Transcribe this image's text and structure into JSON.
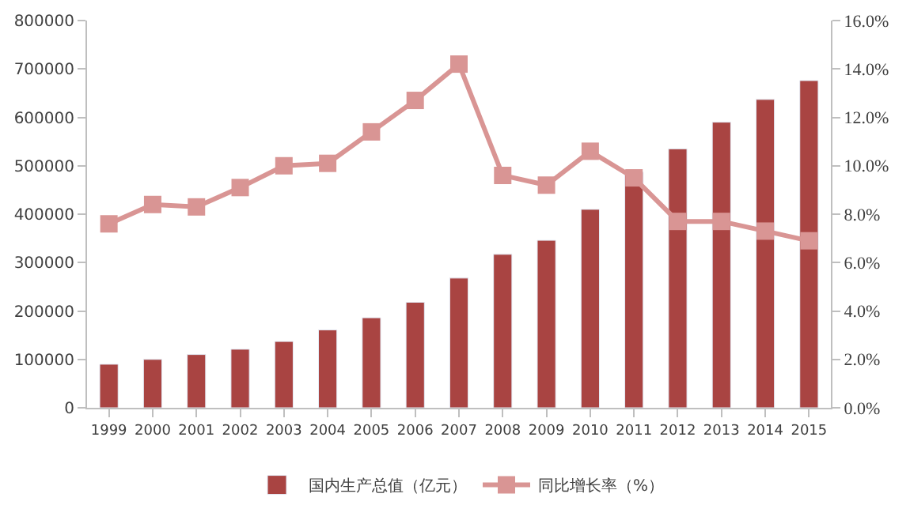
{
  "chart_data": {
    "type": "bar",
    "categories": [
      "1999",
      "2000",
      "2001",
      "2002",
      "2003",
      "2004",
      "2005",
      "2006",
      "2007",
      "2008",
      "2009",
      "2010",
      "2011",
      "2012",
      "2013",
      "2014",
      "2015"
    ],
    "series": [
      {
        "name": "国内生产总值（亿元）",
        "color": "#a94442",
        "values": [
          90000,
          100000,
          110000,
          121000,
          137000,
          161000,
          186000,
          218000,
          268000,
          317000,
          346000,
          410000,
          487000,
          535000,
          590000,
          637000,
          676000
        ]
      },
      {
        "name": "同比增长率（%）",
        "type": "line",
        "axis": "y2",
        "color": "#d99594",
        "marker": "square",
        "values": [
          7.6,
          8.4,
          8.3,
          9.1,
          10.0,
          10.1,
          11.4,
          12.7,
          14.2,
          9.6,
          9.2,
          10.6,
          9.5,
          7.7,
          7.7,
          7.3,
          6.9
        ]
      }
    ],
    "ylim": [
      0,
      800000
    ],
    "yticks": [
      0,
      100000,
      200000,
      300000,
      400000,
      500000,
      600000,
      700000,
      800000
    ],
    "y2lim": [
      0,
      16
    ],
    "y2ticks": [
      {
        "value": 0,
        "label": "0.0%"
      },
      {
        "value": 2,
        "label": "2.0%"
      },
      {
        "value": 4,
        "label": "4.0%"
      },
      {
        "value": 6,
        "label": "6.0%"
      },
      {
        "value": 8,
        "label": "8.0%"
      },
      {
        "value": 10,
        "label": "10.0%"
      },
      {
        "value": 12,
        "label": "12.0%"
      },
      {
        "value": 14,
        "label": "14.0%"
      },
      {
        "value": 16,
        "label": "16.0%"
      }
    ],
    "legend": "bottom"
  }
}
